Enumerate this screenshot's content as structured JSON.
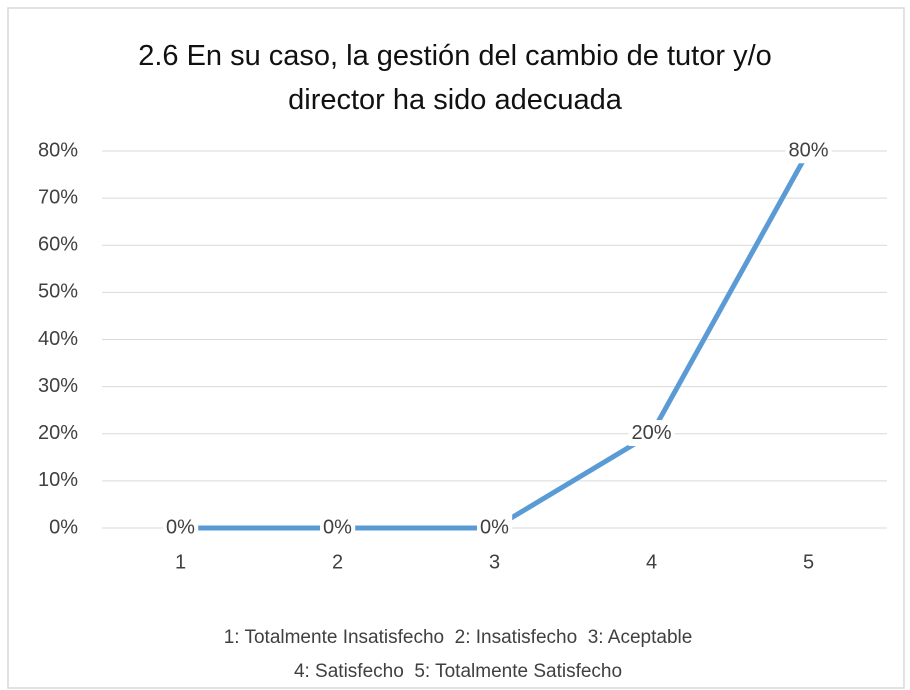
{
  "chart_data": {
    "type": "line",
    "title": "2.6 En su caso, la gestión del cambio de tutor y/o director ha sido adecuada",
    "categories": [
      "1",
      "2",
      "3",
      "4",
      "5"
    ],
    "values": [
      0,
      0,
      0,
      20,
      80
    ],
    "value_labels": [
      "0%",
      "0%",
      "0%",
      "20%",
      "80%"
    ],
    "color": "#5b9bd5",
    "ylim": [
      0,
      80
    ],
    "yticks": [
      {
        "value": 0,
        "label": "0%"
      },
      {
        "value": 10,
        "label": "10%"
      },
      {
        "value": 20,
        "label": "20%"
      },
      {
        "value": 30,
        "label": "30%"
      },
      {
        "value": 40,
        "label": "40%"
      },
      {
        "value": 50,
        "label": "50%"
      },
      {
        "value": 60,
        "label": "60%"
      },
      {
        "value": 70,
        "label": "70%"
      },
      {
        "value": 80,
        "label": "80%"
      }
    ],
    "grid": true,
    "notes": [
      "1: Totalmente Insatisfecho  2: Insatisfecho  3: Aceptable",
      "4: Satisfecho  5: Totalmente Satisfecho"
    ]
  }
}
